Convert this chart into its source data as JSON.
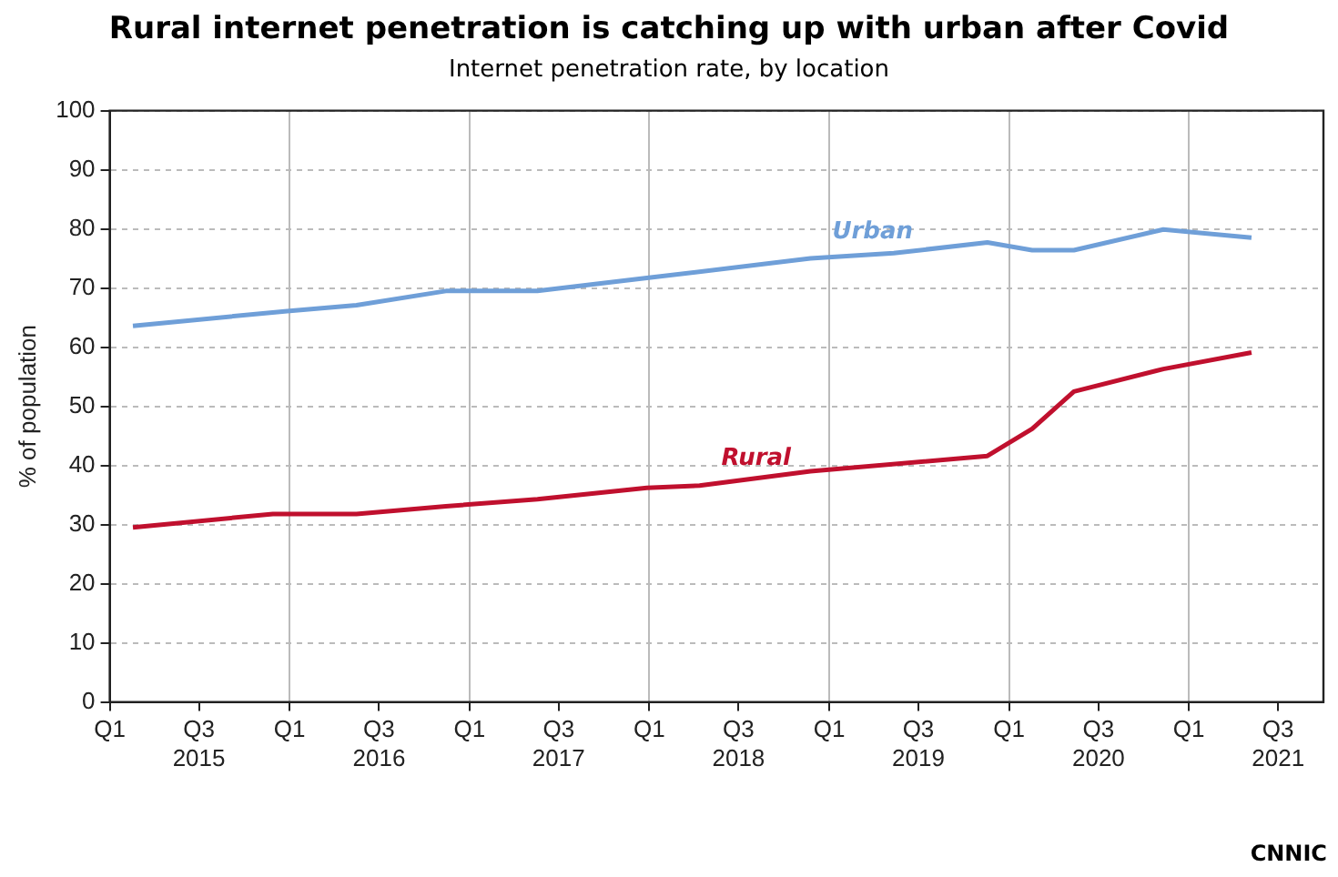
{
  "chart_data": {
    "type": "line",
    "title": "Rural internet penetration is catching up with urban after Covid",
    "subtitle": "Internet penetration rate, by location",
    "ylabel": "% of population",
    "annotations": [
      "CNNIC"
    ],
    "xlim": [
      "2015-01-01",
      "2021-10-01"
    ],
    "xticks": [
      {
        "value": "2015-01-01",
        "label": "Q1"
      },
      {
        "value": "2015-07-01",
        "label": "Q3\n2015"
      },
      {
        "value": "2016-01-01",
        "label": "Q1"
      },
      {
        "value": "2016-07-01",
        "label": "Q3\n2016"
      },
      {
        "value": "2017-01-01",
        "label": "Q1"
      },
      {
        "value": "2017-07-01",
        "label": "Q3\n2017"
      },
      {
        "value": "2018-01-01",
        "label": "Q1"
      },
      {
        "value": "2018-07-01",
        "label": "Q3\n2018"
      },
      {
        "value": "2019-01-01",
        "label": "Q1"
      },
      {
        "value": "2019-07-01",
        "label": "Q3\n2019"
      },
      {
        "value": "2020-01-01",
        "label": "Q1"
      },
      {
        "value": "2020-07-01",
        "label": "Q3\n2020"
      },
      {
        "value": "2021-01-01",
        "label": "Q1"
      },
      {
        "value": "2021-07-01",
        "label": "Q3\n2021"
      }
    ],
    "ylim": [
      0,
      100
    ],
    "yticks": [
      0,
      10,
      20,
      30,
      40,
      50,
      60,
      70,
      80,
      90,
      100
    ],
    "grid": true,
    "legend": false,
    "marker": "none",
    "line_style": "solid",
    "series": [
      {
        "name": "Urban",
        "color": "#6f9fd8",
        "x": [
          "2015-02-17",
          "2015-12-27",
          "2016-05-16",
          "2016-11-14",
          "2017-05-19",
          "2017-12-27",
          "2018-11-24",
          "2019-05-12",
          "2019-11-18",
          "2020-02-17",
          "2020-05-12",
          "2020-11-10",
          "2021-05-08"
        ],
        "values": [
          63.6,
          66.1,
          67.1,
          69.5,
          69.5,
          71.7,
          75.0,
          75.9,
          77.7,
          76.4,
          76.4,
          79.9,
          78.5
        ]
      },
      {
        "name": "Rural",
        "color": "#c0102e",
        "x": [
          "2015-02-17",
          "2015-11-28",
          "2016-05-16",
          "2016-11-14",
          "2017-05-19",
          "2017-12-27",
          "2018-04-13",
          "2018-11-24",
          "2019-11-18",
          "2020-02-17",
          "2020-05-12",
          "2020-11-10",
          "2021-05-08"
        ],
        "values": [
          29.5,
          31.8,
          31.8,
          33.1,
          34.3,
          36.2,
          36.6,
          39.0,
          41.6,
          46.2,
          52.5,
          56.3,
          59.1
        ]
      }
    ]
  }
}
